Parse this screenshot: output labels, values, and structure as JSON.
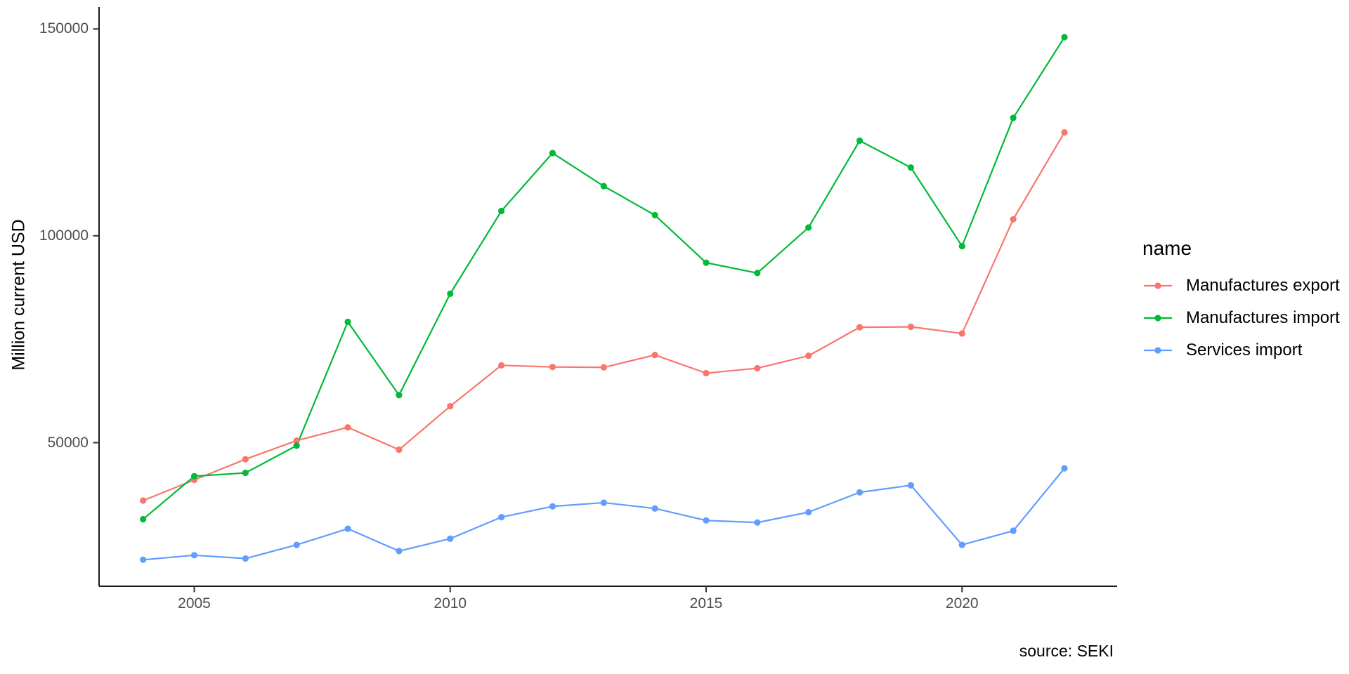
{
  "figure": {
    "y_axis_title": "Million current USD",
    "caption": "source: SEKI",
    "legend": {
      "title": "name",
      "entries": [
        {
          "label": "Manufactures export",
          "color": "#F8766D"
        },
        {
          "label": "Manufactures import",
          "color": "#00BA38"
        },
        {
          "label": "Services import",
          "color": "#619CFF"
        }
      ]
    }
  },
  "chart_data": {
    "type": "line",
    "title": "",
    "xlabel": "",
    "ylabel": "Million current USD",
    "caption": "source: SEKI",
    "grid": false,
    "legend_position": "right",
    "legend_title": "name",
    "x": [
      2004,
      2005,
      2006,
      2007,
      2008,
      2009,
      2010,
      2011,
      2012,
      2013,
      2014,
      2015,
      2016,
      2017,
      2018,
      2019,
      2020,
      2021,
      2022
    ],
    "x_tick_values": [
      2005,
      2010,
      2015,
      2020
    ],
    "x_tick_labels": [
      "2005",
      "2010",
      "2015",
      "2020"
    ],
    "y_tick_values": [
      50000,
      100000,
      150000
    ],
    "y_tick_labels": [
      "50000",
      "100000",
      "150000"
    ],
    "xlim": [
      2003.14,
      2023.03
    ],
    "ylim": [
      15300,
      155300
    ],
    "series": [
      {
        "name": "Manufactures export",
        "color": "#F8766D",
        "values": [
          36000,
          41000,
          46000,
          50500,
          53700,
          48300,
          58800,
          68700,
          68300,
          68200,
          71200,
          66800,
          68000,
          71000,
          77900,
          78000,
          76400,
          104000,
          125000
        ]
      },
      {
        "name": "Manufactures import",
        "color": "#00BA38",
        "values": [
          31500,
          41900,
          42700,
          49300,
          79200,
          61500,
          86000,
          106000,
          120000,
          112000,
          105000,
          93500,
          91000,
          102000,
          123000,
          116500,
          97500,
          128500,
          148000
        ]
      },
      {
        "name": "Services import",
        "color": "#619CFF",
        "values": [
          21700,
          22800,
          22000,
          25300,
          29200,
          23800,
          26800,
          32000,
          34600,
          35500,
          34100,
          31200,
          30700,
          33200,
          38000,
          39700,
          25300,
          28700,
          43800
        ]
      }
    ]
  }
}
